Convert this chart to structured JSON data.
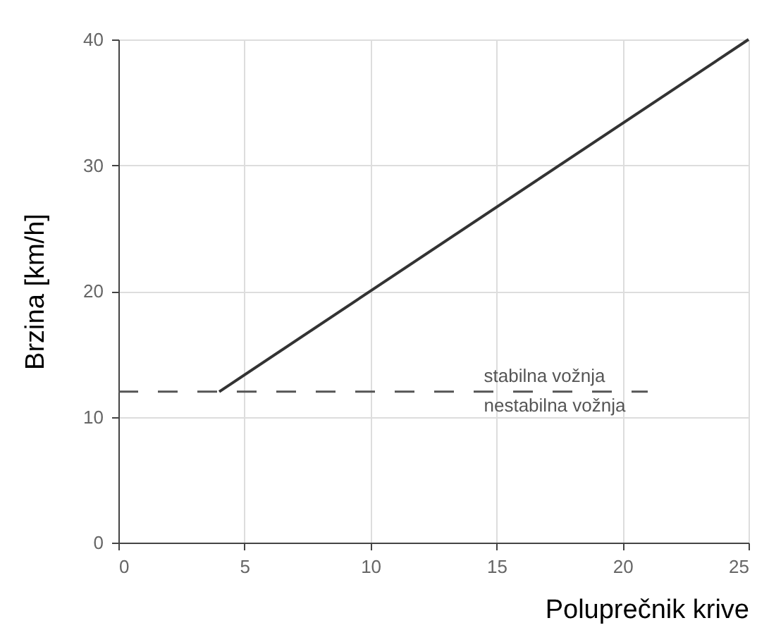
{
  "chart_data": {
    "type": "line",
    "xlabel": "Poluprečnik krive",
    "ylabel": "Brzina [km/h]",
    "xlim": [
      0,
      25
    ],
    "xticks": [
      0,
      5,
      10,
      15,
      20,
      25
    ],
    "ylim": [
      0,
      40
    ],
    "yticks": [
      0,
      10,
      20,
      30,
      40
    ],
    "grid": true,
    "series": [
      {
        "color": "#333333",
        "x": [
          4,
          25
        ],
        "values": [
          12,
          40
        ],
        "line_style": "solid"
      },
      {
        "color": "#555555",
        "x": [
          0,
          21
        ],
        "values": [
          12,
          12
        ],
        "line_style": "dashed"
      }
    ],
    "annotations": [
      {
        "text": "stabilna vožnja",
        "x": 14.5,
        "y": 12
      },
      {
        "text": "nestabilna vožnja",
        "x": 14.5,
        "y": 12
      }
    ]
  }
}
